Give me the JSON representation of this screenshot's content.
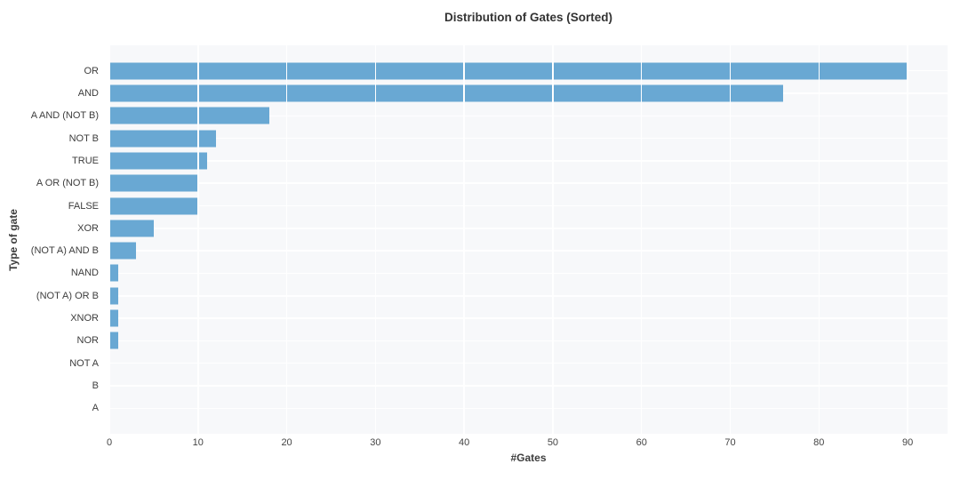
{
  "title": "Distribution of Gates (Sorted)",
  "chart_data": {
    "type": "bar",
    "orientation": "horizontal",
    "title": "Distribution of Gates (Sorted)",
    "xlabel": "#Gates",
    "ylabel": "Type of gate",
    "categories": [
      "OR",
      "AND",
      "A AND (NOT B)",
      "NOT B",
      "TRUE",
      "A OR (NOT B)",
      "FALSE",
      "XOR",
      "(NOT A) AND B",
      "NAND",
      "(NOT A) OR B",
      "XNOR",
      "NOR",
      "NOT A",
      "B",
      "A"
    ],
    "values": [
      90,
      76,
      18,
      12,
      11,
      10,
      10,
      5,
      3,
      1,
      1,
      1,
      1,
      0,
      0,
      0
    ],
    "xticks": [
      0,
      10,
      20,
      30,
      40,
      50,
      60,
      70,
      80,
      90
    ],
    "xlim": [
      0,
      94.5
    ],
    "grid": true,
    "legend": "none",
    "colors": {
      "bar": "#69a8d3",
      "plot_bg": "#f7f8fa",
      "grid": "#ffffff",
      "tick_text": "#444444",
      "label_text": "#3d3d3d",
      "title_text": "#333333"
    }
  }
}
